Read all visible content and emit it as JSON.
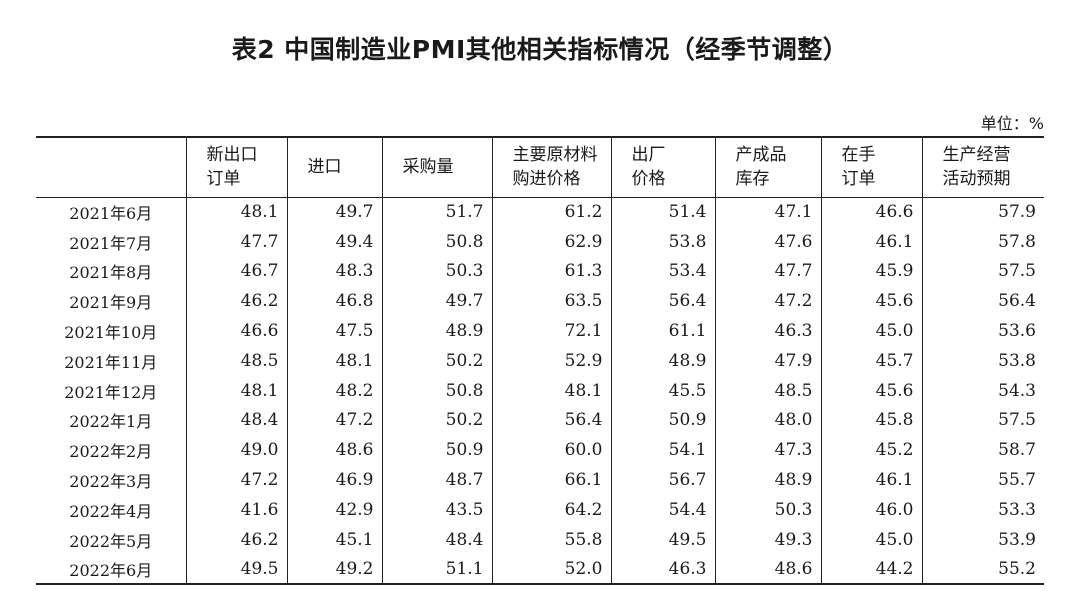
{
  "title": "表2 中国制造业PMI其他相关指标情况（经季节调整）",
  "unit": "单位：%",
  "columns": [
    "",
    "新出口\n订单",
    "进口",
    "采购量",
    "主要原材料\n购进价格",
    "出厂\n价格",
    "产成品\n库存",
    "在手\n订单",
    "生产经营\n活动预期"
  ],
  "rows": [
    [
      "2021年6月",
      "48.1",
      "49.7",
      "51.7",
      "61.2",
      "51.4",
      "47.1",
      "46.6",
      "57.9"
    ],
    [
      "2021年7月",
      "47.7",
      "49.4",
      "50.8",
      "62.9",
      "53.8",
      "47.6",
      "46.1",
      "57.8"
    ],
    [
      "2021年8月",
      "46.7",
      "48.3",
      "50.3",
      "61.3",
      "53.4",
      "47.7",
      "45.9",
      "57.5"
    ],
    [
      "2021年9月",
      "46.2",
      "46.8",
      "49.7",
      "63.5",
      "56.4",
      "47.2",
      "45.6",
      "56.4"
    ],
    [
      "2021年10月",
      "46.6",
      "47.5",
      "48.9",
      "72.1",
      "61.1",
      "46.3",
      "45.0",
      "53.6"
    ],
    [
      "2021年11月",
      "48.5",
      "48.1",
      "50.2",
      "52.9",
      "48.9",
      "47.9",
      "45.7",
      "53.8"
    ],
    [
      "2021年12月",
      "48.1",
      "48.2",
      "50.8",
      "48.1",
      "45.5",
      "48.5",
      "45.6",
      "54.3"
    ],
    [
      "2022年1月",
      "48.4",
      "47.2",
      "50.2",
      "56.4",
      "50.9",
      "48.0",
      "45.8",
      "57.5"
    ],
    [
      "2022年2月",
      "49.0",
      "48.6",
      "50.9",
      "60.0",
      "54.1",
      "47.3",
      "45.2",
      "58.7"
    ],
    [
      "2022年3月",
      "47.2",
      "46.9",
      "48.7",
      "66.1",
      "56.7",
      "48.9",
      "46.1",
      "55.7"
    ],
    [
      "2022年4月",
      "41.6",
      "42.9",
      "43.5",
      "64.2",
      "54.4",
      "50.3",
      "46.0",
      "53.3"
    ],
    [
      "2022年5月",
      "46.2",
      "45.1",
      "48.4",
      "55.8",
      "49.5",
      "49.3",
      "45.0",
      "53.9"
    ],
    [
      "2022年6月",
      "49.5",
      "49.2",
      "51.1",
      "52.0",
      "46.3",
      "48.6",
      "44.2",
      "55.2"
    ]
  ]
}
